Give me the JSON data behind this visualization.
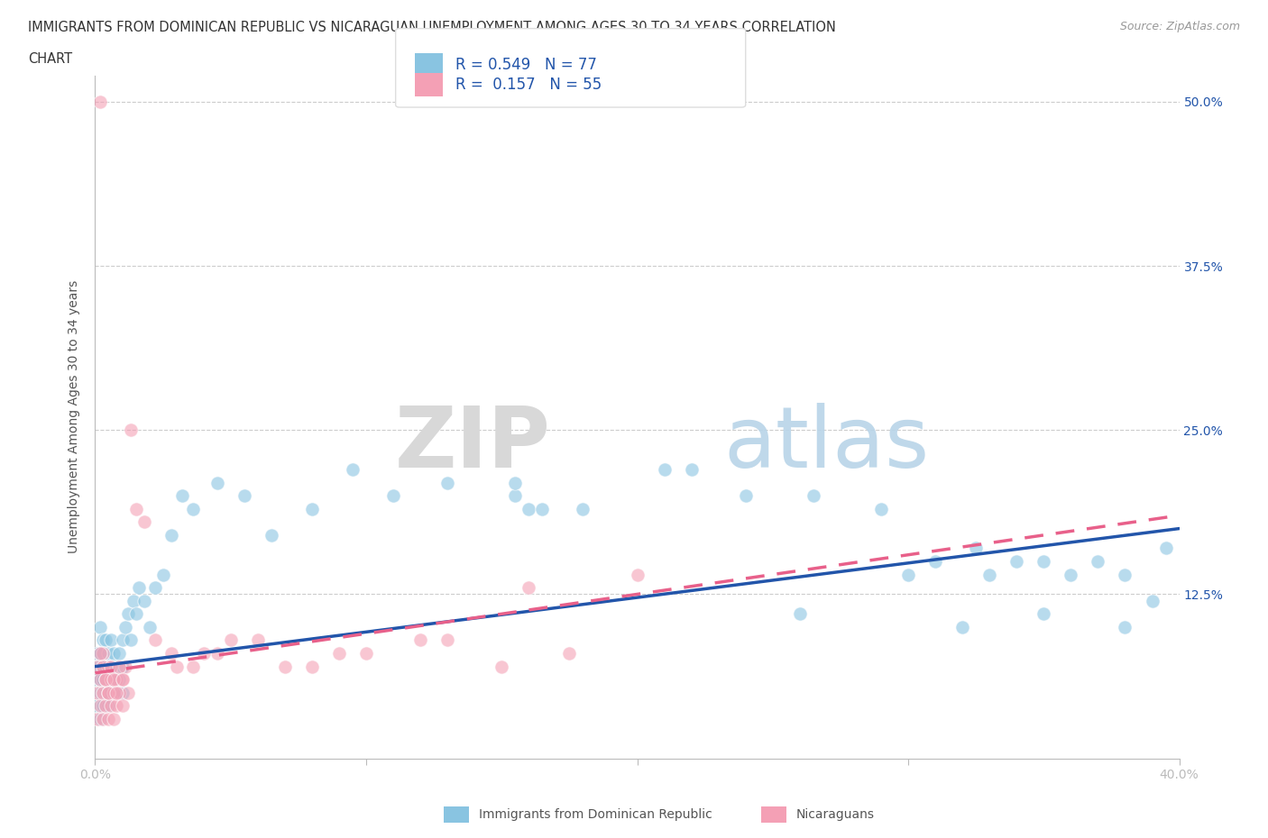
{
  "title_line1": "IMMIGRANTS FROM DOMINICAN REPUBLIC VS NICARAGUAN UNEMPLOYMENT AMONG AGES 30 TO 34 YEARS CORRELATION",
  "title_line2": "CHART",
  "source_text": "Source: ZipAtlas.com",
  "ylabel": "Unemployment Among Ages 30 to 34 years",
  "xlim": [
    0.0,
    0.4
  ],
  "ylim": [
    0.0,
    0.52
  ],
  "xticks": [
    0.0,
    0.1,
    0.2,
    0.3,
    0.4
  ],
  "xticklabels": [
    "0.0%",
    "",
    "",
    "",
    "40.0%"
  ],
  "yticks": [
    0.0,
    0.125,
    0.25,
    0.375,
    0.5
  ],
  "yticklabels": [
    "",
    "12.5%",
    "25.0%",
    "37.5%",
    "50.0%"
  ],
  "blue_color": "#89c4e1",
  "pink_color": "#f4a0b5",
  "blue_line_color": "#2255aa",
  "pink_line_color": "#e8608a",
  "R_blue": 0.549,
  "N_blue": 77,
  "R_pink": 0.157,
  "N_pink": 55,
  "watermark_zip": "ZIP",
  "watermark_atlas": "atlas",
  "legend_label_blue": "Immigrants from Dominican Republic",
  "legend_label_pink": "Nicaraguans",
  "background_color": "#ffffff",
  "grid_color": "#cccccc",
  "blue_scatter_x": [
    0.001,
    0.001,
    0.001,
    0.001,
    0.002,
    0.002,
    0.002,
    0.002,
    0.002,
    0.003,
    0.003,
    0.003,
    0.003,
    0.004,
    0.004,
    0.004,
    0.005,
    0.005,
    0.005,
    0.006,
    0.006,
    0.006,
    0.007,
    0.007,
    0.008,
    0.008,
    0.009,
    0.009,
    0.01,
    0.01,
    0.011,
    0.012,
    0.013,
    0.014,
    0.015,
    0.016,
    0.018,
    0.02,
    0.022,
    0.025,
    0.028,
    0.032,
    0.036,
    0.045,
    0.055,
    0.065,
    0.08,
    0.095,
    0.11,
    0.13,
    0.155,
    0.18,
    0.21,
    0.24,
    0.265,
    0.29,
    0.31,
    0.325,
    0.33,
    0.34,
    0.35,
    0.36,
    0.37,
    0.38,
    0.395,
    0.155,
    0.16,
    0.165,
    0.22,
    0.26,
    0.3,
    0.32,
    0.35,
    0.38,
    0.39,
    0.005,
    0.01
  ],
  "blue_scatter_y": [
    0.04,
    0.06,
    0.07,
    0.08,
    0.03,
    0.05,
    0.06,
    0.08,
    0.1,
    0.04,
    0.06,
    0.07,
    0.09,
    0.05,
    0.07,
    0.09,
    0.04,
    0.06,
    0.08,
    0.05,
    0.07,
    0.09,
    0.06,
    0.08,
    0.05,
    0.07,
    0.06,
    0.08,
    0.05,
    0.09,
    0.1,
    0.11,
    0.09,
    0.12,
    0.11,
    0.13,
    0.12,
    0.1,
    0.13,
    0.14,
    0.17,
    0.2,
    0.19,
    0.21,
    0.2,
    0.17,
    0.19,
    0.22,
    0.2,
    0.21,
    0.2,
    0.19,
    0.22,
    0.2,
    0.2,
    0.19,
    0.15,
    0.16,
    0.14,
    0.15,
    0.15,
    0.14,
    0.15,
    0.14,
    0.16,
    0.21,
    0.19,
    0.19,
    0.22,
    0.11,
    0.14,
    0.1,
    0.11,
    0.1,
    0.12,
    0.05,
    0.07
  ],
  "pink_scatter_x": [
    0.001,
    0.001,
    0.001,
    0.002,
    0.002,
    0.002,
    0.003,
    0.003,
    0.003,
    0.004,
    0.004,
    0.005,
    0.005,
    0.005,
    0.006,
    0.006,
    0.007,
    0.007,
    0.008,
    0.008,
    0.009,
    0.01,
    0.01,
    0.011,
    0.012,
    0.013,
    0.015,
    0.018,
    0.022,
    0.028,
    0.036,
    0.045,
    0.06,
    0.08,
    0.1,
    0.13,
    0.16,
    0.2,
    0.03,
    0.04,
    0.05,
    0.07,
    0.09,
    0.12,
    0.15,
    0.175,
    0.002,
    0.003,
    0.004,
    0.005,
    0.006,
    0.007,
    0.008,
    0.009,
    0.01
  ],
  "pink_scatter_y": [
    0.03,
    0.05,
    0.07,
    0.04,
    0.06,
    0.5,
    0.03,
    0.05,
    0.08,
    0.04,
    0.06,
    0.03,
    0.05,
    0.07,
    0.04,
    0.06,
    0.03,
    0.05,
    0.04,
    0.06,
    0.05,
    0.04,
    0.06,
    0.07,
    0.05,
    0.25,
    0.19,
    0.18,
    0.09,
    0.08,
    0.07,
    0.08,
    0.09,
    0.07,
    0.08,
    0.09,
    0.13,
    0.14,
    0.07,
    0.08,
    0.09,
    0.07,
    0.08,
    0.09,
    0.07,
    0.08,
    0.08,
    0.07,
    0.06,
    0.05,
    0.07,
    0.06,
    0.05,
    0.07,
    0.06
  ]
}
